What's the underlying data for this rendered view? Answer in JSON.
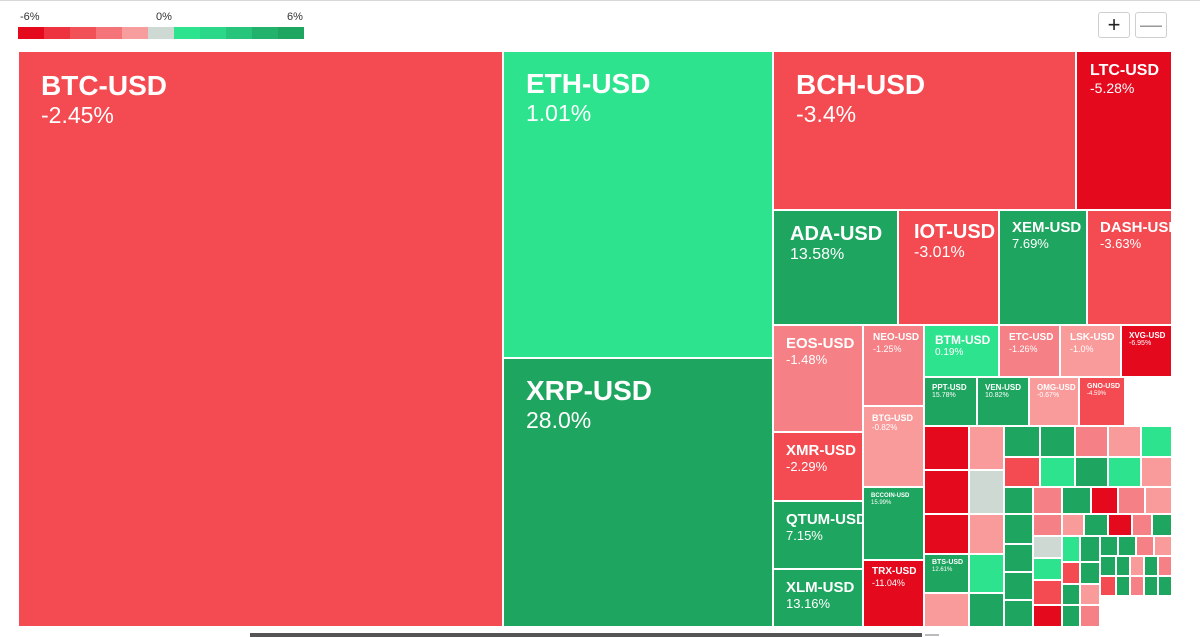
{
  "legend": {
    "min_label": "-6%",
    "mid_label": "0%",
    "max_label": "6%",
    "swatches": [
      "#e5091e",
      "#ee3340",
      "#f25057",
      "#f57479",
      "#f79d9d",
      "#cfd9d4",
      "#2de38e",
      "#2bd788",
      "#27c57b",
      "#22b26c",
      "#1ea55f"
    ]
  },
  "controls": {
    "zoom_in": "+",
    "zoom_out": "—"
  },
  "palette": {
    "red_dark": "#e5091e",
    "red": "#f34b51",
    "red_light": "#f58085",
    "red_pale": "#fa9b9b",
    "neutral": "#cfd9d4",
    "green_light": "#2de38e",
    "green": "#1ea55f"
  },
  "chart_data": {
    "type": "treemap",
    "title": "",
    "color_scale": {
      "min": -6,
      "mid": 0,
      "max": 6,
      "unit": "%"
    },
    "items": [
      {
        "name": "BTC-USD",
        "change": "-2.45%"
      },
      {
        "name": "ETH-USD",
        "change": "1.01%"
      },
      {
        "name": "XRP-USD",
        "change": "28.0%"
      },
      {
        "name": "BCH-USD",
        "change": "-3.4%"
      },
      {
        "name": "LTC-USD",
        "change": "-5.28%"
      },
      {
        "name": "ADA-USD",
        "change": "13.58%"
      },
      {
        "name": "IOT-USD",
        "change": "-3.01%"
      },
      {
        "name": "XEM-USD",
        "change": "7.69%"
      },
      {
        "name": "DASH-USD",
        "change": "-3.63%"
      },
      {
        "name": "EOS-USD",
        "change": "-1.48%"
      },
      {
        "name": "NEO-USD",
        "change": "-1.25%"
      },
      {
        "name": "BTM-USD",
        "change": "0.19%"
      },
      {
        "name": "ETC-USD",
        "change": "-1.26%"
      },
      {
        "name": "LSK-USD",
        "change": "-1.0%"
      },
      {
        "name": "XVG-USD",
        "change": "-6.95%"
      },
      {
        "name": "PPT-USD",
        "change": "15.78%"
      },
      {
        "name": "VEN-USD",
        "change": "10.82%"
      },
      {
        "name": "OMG-USD",
        "change": "-0.67%"
      },
      {
        "name": "GNO-USD",
        "change": "-4.59%"
      },
      {
        "name": "BTG-USD",
        "change": "-0.82%"
      },
      {
        "name": "XMR-USD",
        "change": "-2.29%"
      },
      {
        "name": "BCCOIN-USD",
        "change": "15.99%"
      },
      {
        "name": "QTUM-USD",
        "change": "7.15%"
      },
      {
        "name": "XLM-USD",
        "change": "13.16%"
      },
      {
        "name": "TRX-USD",
        "change": "-11.04%"
      },
      {
        "name": "BTS-USD",
        "change": "12.61%"
      }
    ],
    "small_unlabeled_cells": [
      "red_dark",
      "red_pale",
      "green",
      "green",
      "red_light",
      "red_pale",
      "green_light",
      "red_dark",
      "neutral",
      "red",
      "green_light",
      "green",
      "green_light",
      "red_pale",
      "red_dark",
      "red_pale",
      "green",
      "red_light",
      "green",
      "red_dark",
      "red_light",
      "red_pale",
      "green_light",
      "red_pale",
      "green",
      "green",
      "red_light",
      "red_pale",
      "green",
      "red_dark",
      "red_light",
      "green",
      "green",
      "neutral",
      "green_light",
      "green",
      "green",
      "green",
      "red_light",
      "red_pale",
      "green",
      "green_light",
      "red",
      "green",
      "green",
      "green",
      "red_pale",
      "green",
      "red_light",
      "green",
      "red",
      "green",
      "red_pale",
      "red",
      "green",
      "red_light",
      "green",
      "green",
      "red_dark",
      "green",
      "red_light"
    ]
  }
}
